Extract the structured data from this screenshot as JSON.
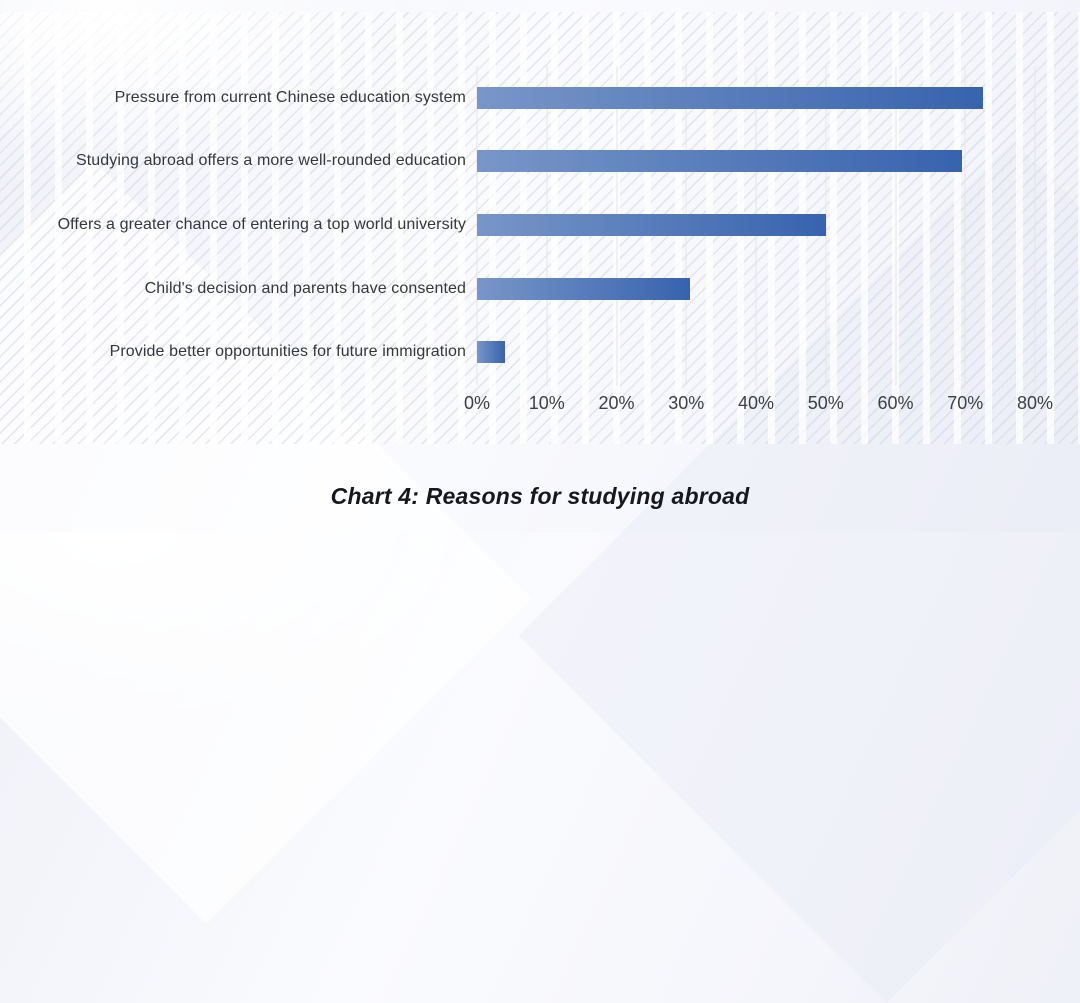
{
  "page": {
    "caption": "Chart 4: Reasons for studying abroad"
  },
  "chart_data": {
    "type": "bar",
    "orientation": "horizontal",
    "title": "Chart 4: Reasons for studying abroad",
    "categories": [
      "Pressure from current Chinese education system",
      "Studying abroad offers a more well-rounded education",
      "Offers a greater chance of entering a top world university",
      "Child's decision and parents have consented",
      "Provide better opportunities for future immigration"
    ],
    "values": [
      72.5,
      69.5,
      50,
      30.5,
      4
    ],
    "unit": "%",
    "xlabel": "",
    "ylabel": "",
    "xlim": [
      0,
      80
    ],
    "tick_step": 10,
    "tick_labels": [
      "0%",
      "10%",
      "20%",
      "30%",
      "40%",
      "50%",
      "60%",
      "70%",
      "80%"
    ],
    "grid": "vertical",
    "legend": "none",
    "colors": {
      "bar_gradient_start": "#7896C8",
      "bar_gradient_end": "#3763AE",
      "gridline": "#e3e5ea",
      "category_label": "#34373d",
      "tick_label": "#3d4046",
      "caption": "#16181e"
    }
  }
}
